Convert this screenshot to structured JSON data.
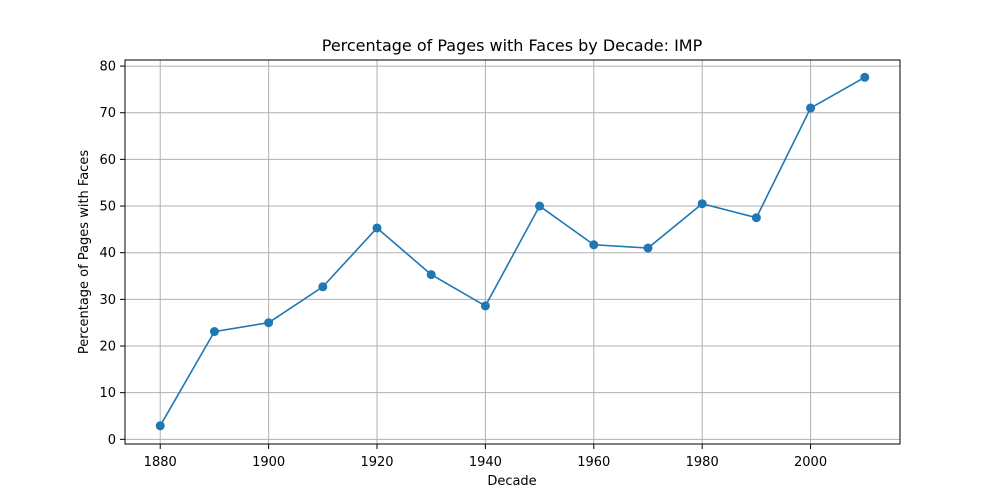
{
  "chart_data": {
    "type": "line",
    "title": "Percentage of Pages with Faces by Decade: IMP",
    "xlabel": "Decade",
    "ylabel": "Percentage of Pages with Faces",
    "x": [
      1880,
      1890,
      1900,
      1910,
      1920,
      1930,
      1940,
      1950,
      1960,
      1970,
      1980,
      1990,
      2000,
      2010
    ],
    "series": [
      {
        "values": [
          2.9,
          23.1,
          25.0,
          32.7,
          45.3,
          35.3,
          28.6,
          50.0,
          41.7,
          41.0,
          50.5,
          47.5,
          71.0,
          77.6
        ],
        "color": "#1f77b4"
      }
    ],
    "xlim": [
      1873.5,
      2016.5
    ],
    "ylim": [
      -1.0,
      81.3
    ],
    "xticks": [
      1880,
      1900,
      1920,
      1940,
      1960,
      1980,
      2000
    ],
    "yticks": [
      0,
      10,
      20,
      30,
      40,
      50,
      60,
      70,
      80
    ],
    "grid": true,
    "marker": "circle"
  }
}
